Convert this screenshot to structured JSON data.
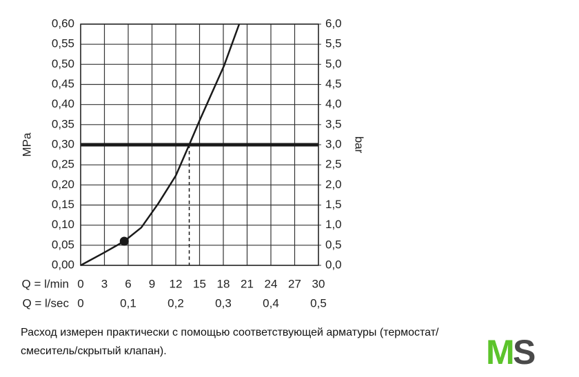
{
  "chart_data": {
    "type": "line",
    "x": [
      0,
      2.9,
      5.5,
      7.65,
      9.8,
      12.0,
      13.7,
      15.0,
      18.1,
      20.0
    ],
    "values": [
      0,
      0.031,
      0.06,
      0.094,
      0.154,
      0.223,
      0.3,
      0.36,
      0.497,
      0.6
    ],
    "color": "#1a1a1a",
    "xlabel": "Q = l/min",
    "x2label": "Q = l/sec",
    "ylabel": "MPa",
    "y2label": "bar",
    "xlim": [
      0,
      30
    ],
    "xticks": [
      0,
      3,
      6,
      9,
      12,
      15,
      18,
      21,
      24,
      27,
      30
    ],
    "x2lim": [
      0,
      0.5
    ],
    "x2ticks": [
      0,
      {
        "value": 0.1,
        "label": "0,1"
      },
      {
        "value": 0.2,
        "label": "0,2"
      },
      {
        "value": 0.3,
        "label": "0,3"
      },
      {
        "value": 0.4,
        "label": "0,4"
      },
      {
        "value": 0.5,
        "label": "0,5"
      }
    ],
    "ylim": [
      0,
      0.6
    ],
    "yticks": [
      {
        "value": 0,
        "label": "0,00"
      },
      {
        "value": 0.05,
        "label": "0,05"
      },
      {
        "value": 0.1,
        "label": "0,10"
      },
      {
        "value": 0.15,
        "label": "0,15"
      },
      {
        "value": 0.2,
        "label": "0,20"
      },
      {
        "value": 0.25,
        "label": "0,25"
      },
      {
        "value": 0.3,
        "label": "0,30"
      },
      {
        "value": 0.35,
        "label": "0,35"
      },
      {
        "value": 0.4,
        "label": "0,40"
      },
      {
        "value": 0.45,
        "label": "0,45"
      },
      {
        "value": 0.5,
        "label": "0,50"
      },
      {
        "value": 0.55,
        "label": "0,55"
      },
      {
        "value": 0.6,
        "label": "0,60"
      }
    ],
    "y2lim": [
      0,
      6
    ],
    "y2ticks": [
      {
        "value": 0,
        "label": "0,0"
      },
      {
        "value": 0.5,
        "label": "0,5"
      },
      {
        "value": 1,
        "label": "1,0"
      },
      {
        "value": 1.5,
        "label": "1,5"
      },
      {
        "value": 2,
        "label": "2,0"
      },
      {
        "value": 2.5,
        "label": "2,5"
      },
      {
        "value": 3,
        "label": "3,0"
      },
      {
        "value": 3.5,
        "label": "3,5"
      },
      {
        "value": 4,
        "label": "4,0"
      },
      {
        "value": 4.5,
        "label": "4,5"
      },
      {
        "value": 5,
        "label": "5,0"
      },
      {
        "value": 5.5,
        "label": "5,5"
      },
      {
        "value": 6,
        "label": "6,0"
      }
    ],
    "grid": true,
    "reference_y": 0.3,
    "reference_x": 13.7,
    "marker": {
      "x": 5.5,
      "y": 0.06
    }
  },
  "caption": [
    "Расход измерен практически с помощью соответствующей арматуры (термостат/",
    "смеситель/скрытый клапан)."
  ],
  "logo": [
    "M",
    "S"
  ]
}
